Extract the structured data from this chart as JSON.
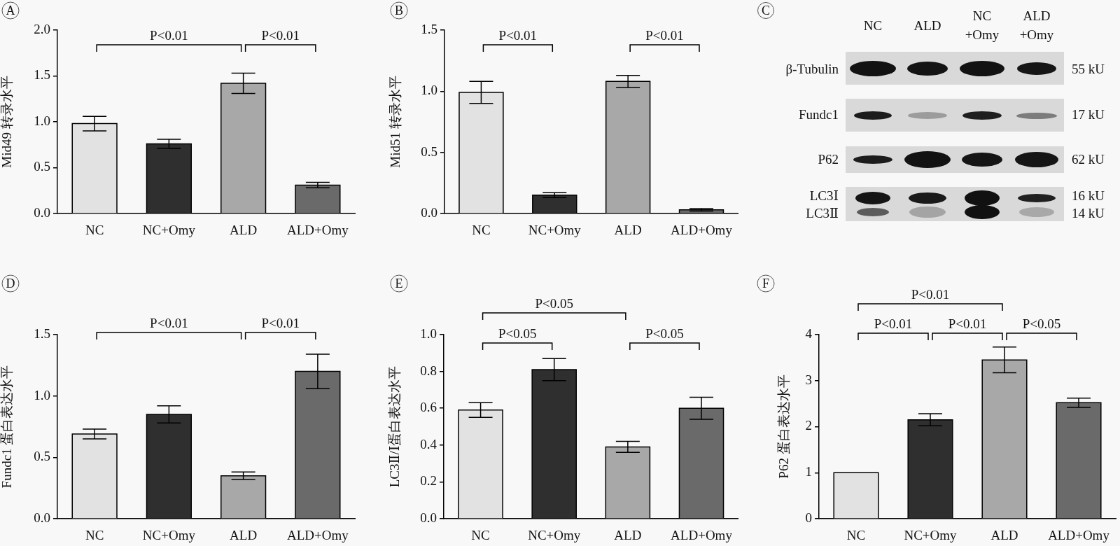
{
  "chart_data": [
    {
      "type": "bar",
      "title": "A",
      "ylabel": "Mid49 转录水平",
      "categories": [
        "NC",
        "NC+Omy",
        "ALD",
        "ALD+Omy"
      ],
      "values": [
        0.98,
        0.76,
        1.42,
        0.31
      ],
      "errors": [
        0.08,
        0.05,
        0.11,
        0.03
      ],
      "colors": [
        "#e2e2e2",
        "#2f2f2f",
        "#a8a8a8",
        "#6a6a6a"
      ],
      "ylim": [
        0,
        2
      ],
      "yticks": [
        {
          "value": 0,
          "label": "0.0"
        },
        0.5,
        {
          "value": 1,
          "label": "1.0"
        },
        1.5,
        {
          "value": 2,
          "label": "2.0"
        }
      ],
      "annotations": [
        "P<0.01",
        "P<0.01"
      ]
    },
    {
      "type": "bar",
      "title": "B",
      "ylabel": "Mid51 转录水平",
      "categories": [
        "NC",
        "NC+Omy",
        "ALD",
        "ALD+Omy"
      ],
      "values": [
        0.99,
        0.15,
        1.08,
        0.03
      ],
      "errors": [
        0.09,
        0.02,
        0.05,
        0.01
      ],
      "colors": [
        "#e2e2e2",
        "#2f2f2f",
        "#a8a8a8",
        "#6a6a6a"
      ],
      "ylim": [
        0,
        1.5
      ],
      "yticks": [
        {
          "value": 0,
          "label": "0.0"
        },
        0.5,
        {
          "value": 1,
          "label": "1.0"
        },
        1.5
      ],
      "annotations": [
        "P<0.01",
        "P<0.01"
      ]
    },
    {
      "type": "other",
      "title": "C",
      "categories": [
        "NC",
        "ALD",
        "NC +Omy",
        "ALD +Omy"
      ],
      "y_categories": [
        "β-Tubulin",
        "Fundc1",
        "P62",
        "LC3Ⅰ",
        "LC3Ⅱ"
      ],
      "y2_categories": [
        "55 kU",
        "17 kU",
        "62 kU",
        "16 kU",
        "14 kU"
      ]
    },
    {
      "type": "bar",
      "title": "D",
      "ylabel": "Fundc1 蛋白表达水平",
      "categories": [
        "NC",
        "NC+Omy",
        "ALD",
        "ALD+Omy"
      ],
      "values": [
        0.69,
        0.85,
        0.35,
        1.2
      ],
      "errors": [
        0.04,
        0.07,
        0.03,
        0.14
      ],
      "colors": [
        "#e2e2e2",
        "#2f2f2f",
        "#a8a8a8",
        "#6a6a6a"
      ],
      "ylim": [
        0,
        1.5
      ],
      "yticks": [
        {
          "value": 0,
          "label": "0.0"
        },
        0.5,
        {
          "value": 1,
          "label": "1.0"
        },
        1.5
      ],
      "annotations": [
        "P<0.01",
        "P<0.01"
      ]
    },
    {
      "type": "bar",
      "title": "E",
      "ylabel": "LC3Ⅱ/Ⅰ蛋白表达水平",
      "categories": [
        "NC",
        "NC+Omy",
        "ALD",
        "ALD+Omy"
      ],
      "values": [
        0.59,
        0.81,
        0.39,
        0.6
      ],
      "errors": [
        0.04,
        0.06,
        0.03,
        0.06
      ],
      "colors": [
        "#e2e2e2",
        "#2f2f2f",
        "#a8a8a8",
        "#6a6a6a"
      ],
      "ylim": [
        0,
        1
      ],
      "yticks": [
        {
          "value": 0,
          "label": "0.0"
        },
        0.2,
        0.4,
        0.6,
        0.8,
        {
          "value": 1,
          "label": "1.0"
        }
      ],
      "annotations": [
        "P<0.05",
        "P<0.05",
        "P<0.05"
      ]
    },
    {
      "type": "bar",
      "title": "F",
      "ylabel": "P62 蛋白表达水平",
      "categories": [
        "NC",
        "NC+Omy",
        "ALD",
        "ALD+Omy"
      ],
      "values": [
        1,
        2.15,
        3.45,
        2.52
      ],
      "errors": [
        null,
        0.13,
        0.28,
        0.1
      ],
      "colors": [
        "#e2e2e2",
        "#2f2f2f",
        "#a8a8a8",
        "#6a6a6a"
      ],
      "ylim": [
        0,
        4
      ],
      "yticks": [
        0,
        1,
        2,
        3,
        4
      ],
      "annotations": [
        "P<0.01",
        "P<0.01",
        "P<0.01",
        "P<0.05"
      ]
    }
  ]
}
